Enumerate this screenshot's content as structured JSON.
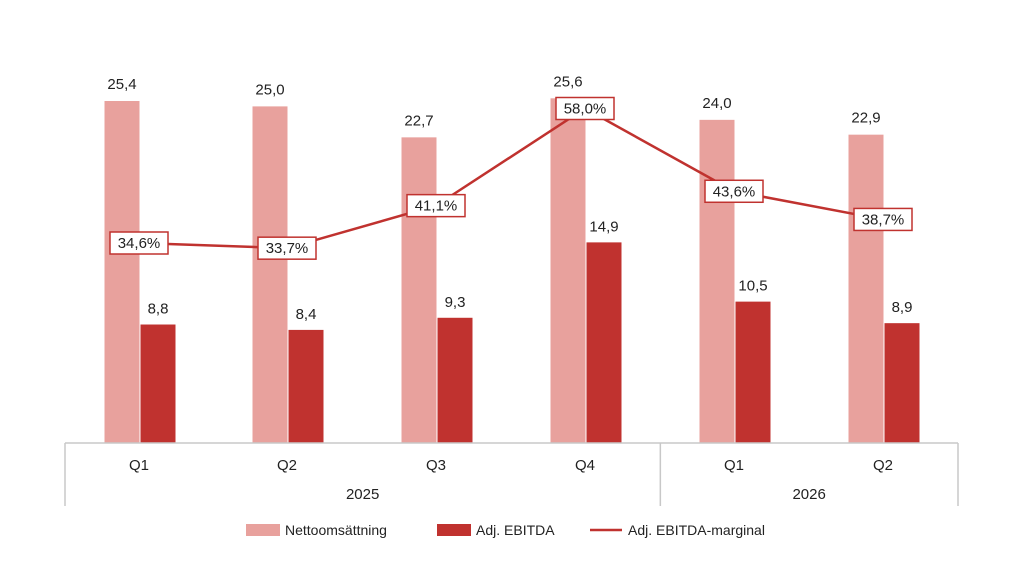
{
  "chart_data": {
    "type": "bar",
    "categories": [
      "Q1",
      "Q2",
      "Q3",
      "Q4",
      "Q1",
      "Q2"
    ],
    "groups": [
      {
        "label": "2025",
        "count": 4
      },
      {
        "label": "2026",
        "count": 2
      }
    ],
    "series": [
      {
        "name": "Nettoomsättning",
        "type": "bar",
        "color": "#e8a19d",
        "values": [
          25.4,
          25.0,
          22.7,
          25.6,
          24.0,
          22.9
        ],
        "labels": [
          "25,4",
          "25,0",
          "22,7",
          "25,6",
          "24,0",
          "22,9"
        ]
      },
      {
        "name": "Adj. EBITDA",
        "type": "bar",
        "color": "#c0322f",
        "values": [
          8.8,
          8.4,
          9.3,
          14.9,
          10.5,
          8.9
        ],
        "labels": [
          "8,8",
          "8,4",
          "9,3",
          "14,9",
          "10,5",
          "8,9"
        ]
      },
      {
        "name": "Adj. EBITDA-marginal",
        "type": "line",
        "color": "#c0322f",
        "values": [
          34.6,
          33.7,
          41.1,
          58.0,
          43.6,
          38.7
        ],
        "labels": [
          "34,6%",
          "33,7%",
          "41,1%",
          "58,0%",
          "43,6%",
          "38,7%"
        ]
      }
    ],
    "ylim_bars": [
      0,
      26
    ],
    "ylim_line": [
      0,
      72
    ],
    "grid": false,
    "legend_position": "bottom"
  }
}
